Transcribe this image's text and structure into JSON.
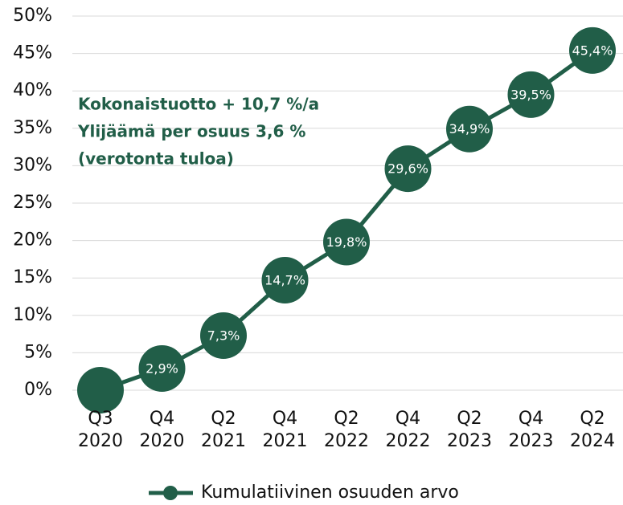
{
  "chart_data": {
    "type": "line",
    "categories": [
      "Q3 2020",
      "Q4 2020",
      "Q2 2021",
      "Q4 2021",
      "Q2 2022",
      "Q4 2022",
      "Q2 2023",
      "Q4 2023",
      "Q2 2024"
    ],
    "series": [
      {
        "name": "Kumulatiivinen osuuden arvo",
        "color": "#215e48",
        "values": [
          0,
          2.9,
          7.3,
          14.7,
          19.8,
          29.6,
          34.9,
          39.5,
          45.4
        ],
        "value_labels": [
          null,
          "2,9%",
          "7,3%",
          "14,7%",
          "19,8%",
          "29,6%",
          "34,9%",
          "39,5%",
          "45,4%"
        ]
      }
    ],
    "ylim": [
      0,
      50
    ],
    "yticks": [
      {
        "value": 0,
        "label": "0%"
      },
      {
        "value": 5,
        "label": "5%"
      },
      {
        "value": 10,
        "label": "10%"
      },
      {
        "value": 15,
        "label": "15%"
      },
      {
        "value": 20,
        "label": "20%"
      },
      {
        "value": 25,
        "label": "25%"
      },
      {
        "value": 30,
        "label": "30%"
      },
      {
        "value": 35,
        "label": "35%"
      },
      {
        "value": 40,
        "label": "40%"
      },
      {
        "value": 45,
        "label": "45%"
      },
      {
        "value": 50,
        "label": "50%"
      }
    ],
    "grid": true,
    "legend": "bottom",
    "annotations": [
      "Kokonaistuotto + 10,7 %/a",
      "Ylijäämä per osuus 3,6 %",
      "(verotonta tuloa)"
    ]
  }
}
